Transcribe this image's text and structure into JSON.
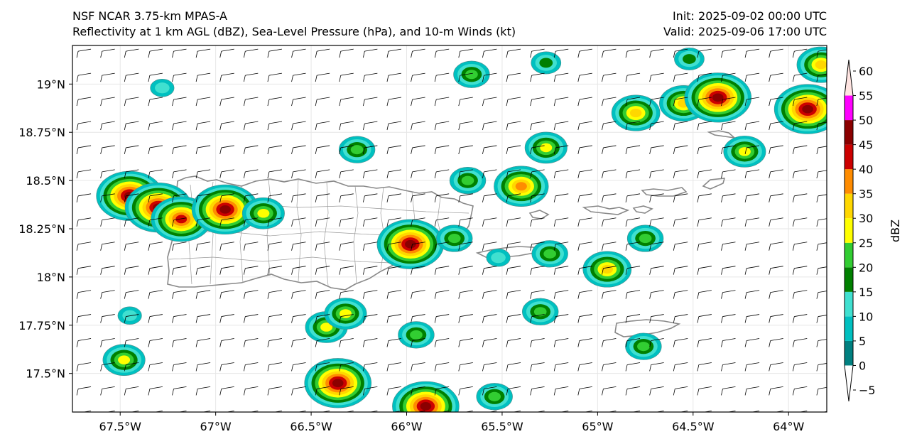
{
  "header": {
    "title_line1": "NSF NCAR 3.75-km MPAS-A",
    "title_line2": "Reflectivity at 1 km AGL (dBZ), Sea-Level Pressure (hPa), and 10-m Winds (kt)",
    "init": "Init: 2025-09-02 00:00 UTC",
    "valid": "Valid: 2025-09-06 17:00 UTC"
  },
  "map": {
    "lat_labels": [
      "19°N",
      "18.75°N",
      "18.5°N",
      "18.25°N",
      "18°N",
      "17.75°N",
      "17.5°N"
    ],
    "lon_labels": [
      "67.5°W",
      "67°W",
      "66.5°W",
      "66°W",
      "65.5°W",
      "65°W",
      "64.5°W",
      "64°W"
    ],
    "lat_values": [
      19.0,
      18.75,
      18.5,
      18.25,
      18.0,
      17.75,
      17.5
    ],
    "lon_values": [
      -67.5,
      -67.0,
      -66.5,
      -66.0,
      -65.5,
      -65.0,
      -64.5,
      -64.0
    ],
    "extent": {
      "lon_min": -67.75,
      "lon_max": -63.8,
      "lat_min": 17.3,
      "lat_max": 19.2
    },
    "storm_cells": [
      {
        "lon": -67.45,
        "lat": 18.42,
        "peak_dbz": 45
      },
      {
        "lon": -67.3,
        "lat": 18.36,
        "peak_dbz": 45
      },
      {
        "lon": -67.18,
        "lat": 18.3,
        "peak_dbz": 40
      },
      {
        "lon": -66.95,
        "lat": 18.35,
        "peak_dbz": 45
      },
      {
        "lon": -66.75,
        "lat": 18.33,
        "peak_dbz": 25
      },
      {
        "lon": -65.98,
        "lat": 18.17,
        "peak_dbz": 45
      },
      {
        "lon": -65.75,
        "lat": 18.2,
        "peak_dbz": 20
      },
      {
        "lon": -65.68,
        "lat": 18.5,
        "peak_dbz": 20
      },
      {
        "lon": -65.4,
        "lat": 18.47,
        "peak_dbz": 35
      },
      {
        "lon": -65.52,
        "lat": 18.1,
        "peak_dbz": 10
      },
      {
        "lon": -65.25,
        "lat": 18.12,
        "peak_dbz": 20
      },
      {
        "lon": -64.95,
        "lat": 18.04,
        "peak_dbz": 30
      },
      {
        "lon": -64.55,
        "lat": 18.9,
        "peak_dbz": 30
      },
      {
        "lon": -64.37,
        "lat": 18.93,
        "peak_dbz": 45
      },
      {
        "lon": -63.9,
        "lat": 18.87,
        "peak_dbz": 45
      },
      {
        "lon": -63.83,
        "lat": 19.1,
        "peak_dbz": 30
      },
      {
        "lon": -64.23,
        "lat": 18.65,
        "peak_dbz": 25
      },
      {
        "lon": -64.8,
        "lat": 18.85,
        "peak_dbz": 30
      },
      {
        "lon": -65.27,
        "lat": 18.67,
        "peak_dbz": 25
      },
      {
        "lon": -66.26,
        "lat": 18.66,
        "peak_dbz": 20
      },
      {
        "lon": -64.75,
        "lat": 18.2,
        "peak_dbz": 20
      },
      {
        "lon": -66.42,
        "lat": 17.74,
        "peak_dbz": 25
      },
      {
        "lon": -66.32,
        "lat": 17.81,
        "peak_dbz": 25
      },
      {
        "lon": -66.36,
        "lat": 17.45,
        "peak_dbz": 45
      },
      {
        "lon": -67.48,
        "lat": 17.57,
        "peak_dbz": 25
      },
      {
        "lon": -65.9,
        "lat": 17.33,
        "peak_dbz": 45
      },
      {
        "lon": -65.95,
        "lat": 17.7,
        "peak_dbz": 20
      },
      {
        "lon": -65.3,
        "lat": 17.82,
        "peak_dbz": 20
      },
      {
        "lon": -64.76,
        "lat": 17.64,
        "peak_dbz": 20
      },
      {
        "lon": -65.54,
        "lat": 17.38,
        "peak_dbz": 20
      },
      {
        "lon": -65.66,
        "lat": 19.05,
        "peak_dbz": 20
      },
      {
        "lon": -65.27,
        "lat": 19.11,
        "peak_dbz": 15
      },
      {
        "lon": -64.52,
        "lat": 19.13,
        "peak_dbz": 15
      },
      {
        "lon": -67.45,
        "lat": 17.8,
        "peak_dbz": 10
      },
      {
        "lon": -67.28,
        "lat": 18.98,
        "peak_dbz": 10
      }
    ]
  },
  "colorbar": {
    "label": "dBZ",
    "tick_labels": [
      "−5",
      "0",
      "5",
      "10",
      "15",
      "20",
      "25",
      "30",
      "35",
      "40",
      "45",
      "50",
      "55",
      "60"
    ],
    "levels": [
      -5,
      0,
      5,
      10,
      15,
      20,
      25,
      30,
      35,
      40,
      45,
      50,
      55,
      60
    ],
    "colors": [
      "#ffffff",
      "#008080",
      "#00c0c0",
      "#40e0d0",
      "#008000",
      "#32cd32",
      "#ffff00",
      "#ffd700",
      "#ff8c00",
      "#cc0000",
      "#8b0000",
      "#ff00ff",
      "#ffe4e1"
    ]
  }
}
